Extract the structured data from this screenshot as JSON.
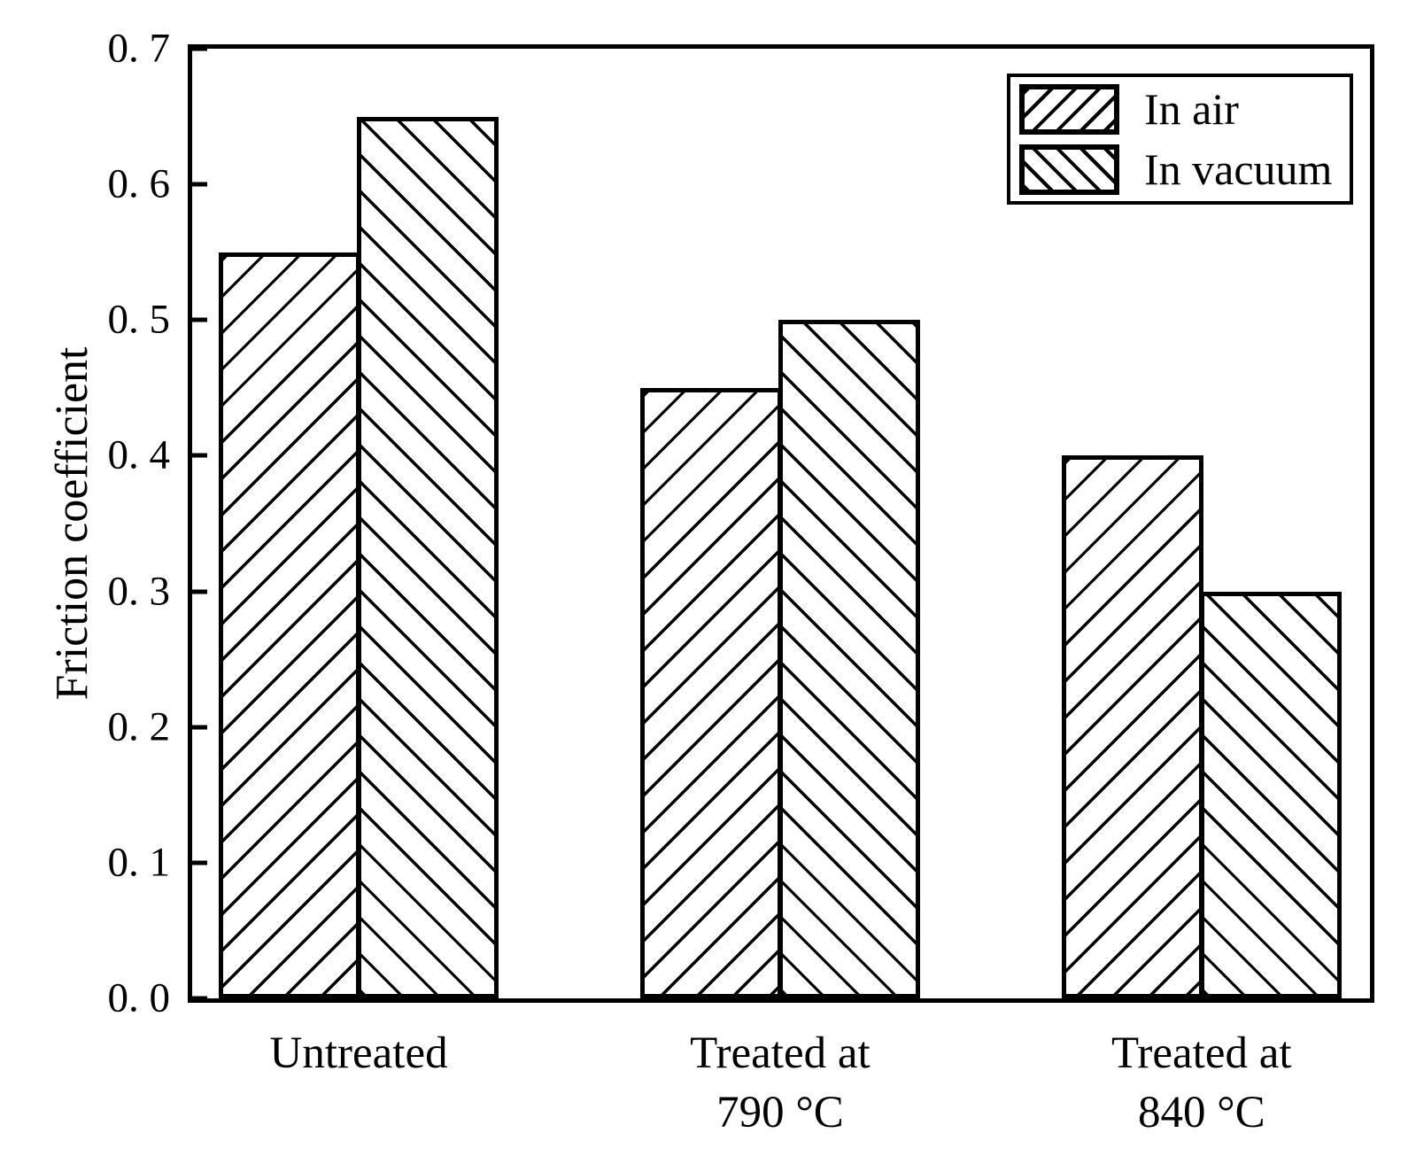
{
  "figure": {
    "background": "#ffffff",
    "foreground": "#000000"
  },
  "chart_data": {
    "type": "bar",
    "title": "",
    "xlabel": "",
    "ylabel": "Friction coefficient",
    "ylim": [
      0.0,
      0.7
    ],
    "grid": false,
    "yticks": [
      {
        "value": 0.0,
        "label": "0. 0"
      },
      {
        "value": 0.1,
        "label": "0. 1"
      },
      {
        "value": 0.2,
        "label": "0. 2"
      },
      {
        "value": 0.3,
        "label": "0. 3"
      },
      {
        "value": 0.4,
        "label": "0. 4"
      },
      {
        "value": 0.5,
        "label": "0. 5"
      },
      {
        "value": 0.6,
        "label": "0. 6"
      },
      {
        "value": 0.7,
        "label": "0. 7"
      }
    ],
    "categories": [
      "Untreated",
      "Treated at 790 °C",
      "Treated at 840 °C"
    ],
    "category_label_lines": [
      [
        "Untreated"
      ],
      [
        "Treated at",
        "790 °C"
      ],
      [
        "Treated at",
        "840 °C"
      ]
    ],
    "series": [
      {
        "name": "In air",
        "hatch": "forward-diagonal",
        "values": [
          0.55,
          0.45,
          0.4
        ]
      },
      {
        "name": "In vacuum",
        "hatch": "backward-diagonal",
        "values": [
          0.65,
          0.5,
          0.3
        ]
      }
    ],
    "legend": {
      "position": "top-right",
      "entries": [
        "In air",
        "In vacuum"
      ]
    }
  }
}
